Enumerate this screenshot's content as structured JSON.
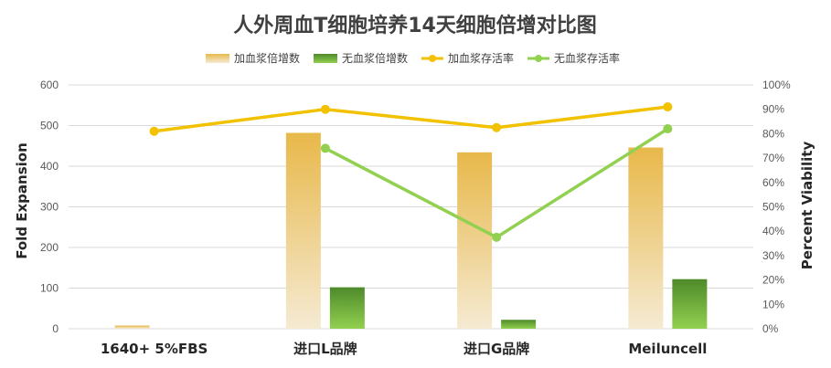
{
  "chart_data": {
    "type": "bar",
    "title": "人外周血T细胞培养14天细胞倍增对比图",
    "categories": [
      "1640+ 5%FBS",
      "进口L品牌",
      "进口G品牌",
      "Meiluncell"
    ],
    "ylabel": "Fold Expansion",
    "y2label": "Percent Viability",
    "ylim": [
      0,
      600
    ],
    "yticks": [
      0,
      100,
      200,
      300,
      400,
      500,
      600
    ],
    "y2lim": [
      0,
      100
    ],
    "y2ticks": [
      "0%",
      "10%",
      "20%",
      "30%",
      "40%",
      "50%",
      "60%",
      "70%",
      "80%",
      "90%",
      "100%"
    ],
    "grid": true,
    "legend_position": "top",
    "series": [
      {
        "name": "加血浆倍增数",
        "kind": "bar",
        "axis": "left",
        "values": [
          8,
          482,
          434,
          446
        ],
        "color_top": "#e8b84a",
        "color_bottom": "#f5ead2"
      },
      {
        "name": "无血浆倍增数",
        "kind": "bar",
        "axis": "left",
        "values": [
          null,
          102,
          22,
          122
        ],
        "color_top": "#4e8a2a",
        "color_bottom": "#92d050"
      },
      {
        "name": "加血浆存活率",
        "kind": "line",
        "axis": "right",
        "values": [
          81,
          90,
          82.5,
          91
        ],
        "color": "#f2c200"
      },
      {
        "name": "无血浆存活率",
        "kind": "line",
        "axis": "right",
        "values": [
          null,
          74,
          37.5,
          82
        ],
        "color": "#92d050"
      }
    ]
  }
}
